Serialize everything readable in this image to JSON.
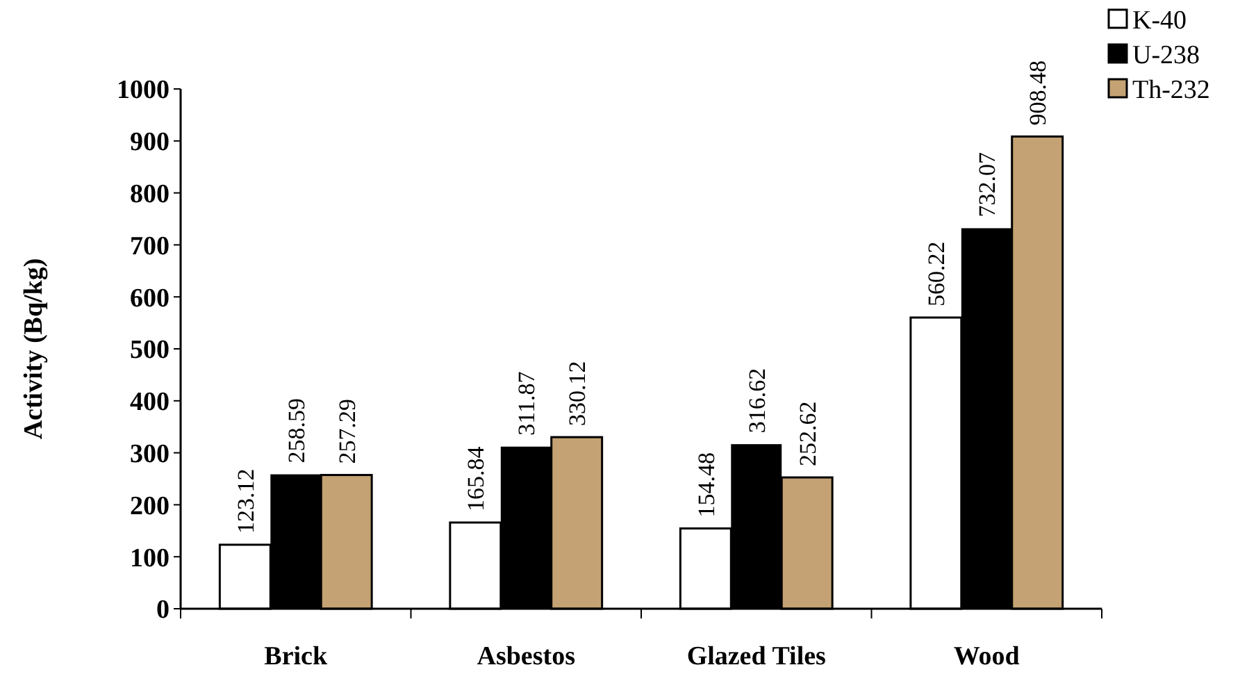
{
  "chart_data": {
    "type": "bar",
    "ylabel": "Activity (Bq/kg)",
    "categories": [
      "Brick",
      "Asbestos",
      "Glazed Tiles",
      "Wood"
    ],
    "series": [
      {
        "name": "K-40",
        "color": "#ffffff",
        "values": [
          123.12,
          165.84,
          154.48,
          560.22
        ]
      },
      {
        "name": "U-238",
        "color": "#000000",
        "values": [
          258.59,
          311.87,
          316.62,
          732.07
        ]
      },
      {
        "name": "Th-232",
        "color": "#c4a273",
        "values": [
          257.29,
          330.12,
          252.62,
          908.48
        ]
      }
    ],
    "ylim": [
      0,
      1000
    ],
    "yticks": [
      0,
      100,
      200,
      300,
      400,
      500,
      600,
      700,
      800,
      900,
      1000
    ],
    "data_labels": true,
    "legend": "top right",
    "grid": false
  }
}
